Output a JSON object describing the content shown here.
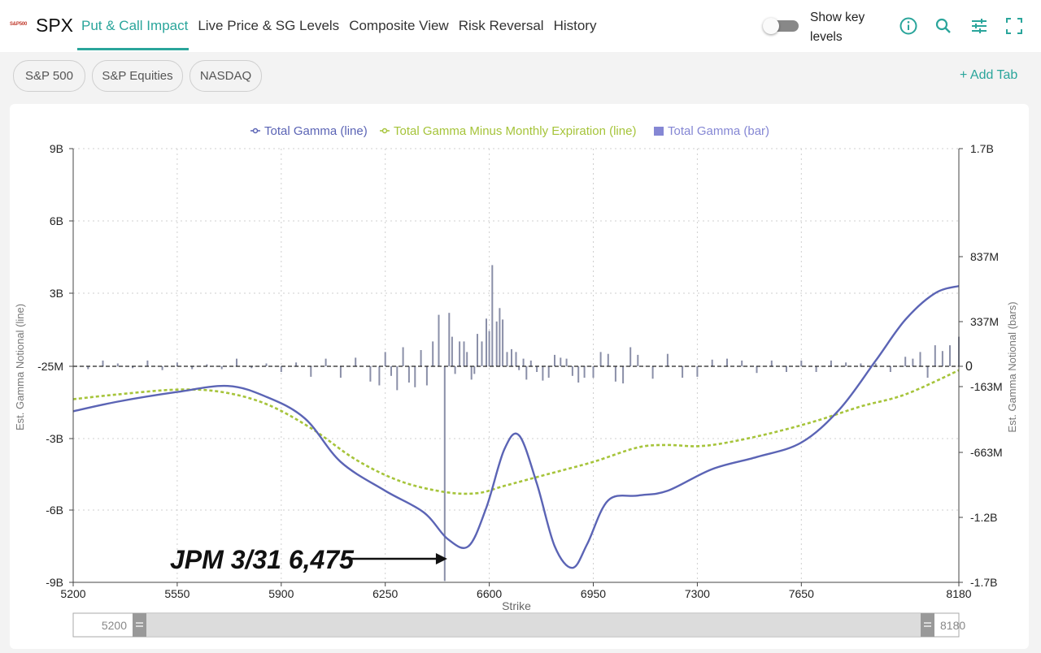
{
  "header": {
    "logo_text": "S&P500",
    "ticker": "SPX",
    "tabs": [
      {
        "label": "Put & Call Impact",
        "active": true
      },
      {
        "label": "Live Price & SG Levels",
        "active": false
      },
      {
        "label": "Composite View",
        "active": false
      },
      {
        "label": "Risk Reversal",
        "active": false
      },
      {
        "label": "History",
        "active": false
      }
    ],
    "toggle_label": "Show key levels",
    "toggle_on": false,
    "accent_color": "#2aa59b",
    "tool_icons": [
      "info-icon",
      "search-icon",
      "sliders-icon",
      "fullscreen-icon"
    ]
  },
  "subtabs": {
    "items": [
      "S&P 500",
      "S&P Equities",
      "NASDAQ"
    ],
    "add_label": "+ Add Tab"
  },
  "chart_data": {
    "type": "bar+line",
    "legend": [
      "Total Gamma (line)",
      "Total Gamma Minus Monthly Expiration (line)",
      "Total Gamma (bar)"
    ],
    "legend_placement": "top-center",
    "xlabel": "Strike",
    "ylabel_left": "Est. Gamma Notional (line)",
    "ylabel_right": "Est. Gamma Notional (bars)",
    "x_range": [
      5200,
      8180
    ],
    "x_ticks": [
      5200,
      5550,
      5900,
      6250,
      6600,
      6950,
      7300,
      7650,
      8180
    ],
    "left_axis_ticks": [
      "9B",
      "6B",
      "3B",
      "-25M",
      "-3B",
      "-6B",
      "-9B"
    ],
    "right_axis_ticks": [
      "1.7B",
      "837M",
      "337M",
      "0",
      "-163M",
      "-663M",
      "-1.2B",
      "-1.7B"
    ],
    "grid": true,
    "colors": {
      "total_gamma": "#5b64b5",
      "minus_monthly": "#a6c43a",
      "bars": "#8a8fa8"
    },
    "series": [
      {
        "name": "Total Gamma (line)",
        "unit": "B",
        "x": [
          5200,
          5350,
          5550,
          5720,
          5850,
          5980,
          6100,
          6250,
          6380,
          6460,
          6530,
          6590,
          6650,
          6700,
          6760,
          6820,
          6880,
          6930,
          7000,
          7100,
          7200,
          7350,
          7500,
          7650,
          7780,
          7900,
          8000,
          8100,
          8180
        ],
        "y": [
          -1.9,
          -1.5,
          -1.1,
          -0.85,
          -1.3,
          -2.2,
          -4.0,
          -5.2,
          -6.1,
          -7.2,
          -7.5,
          -5.9,
          -3.5,
          -2.9,
          -4.9,
          -7.5,
          -8.4,
          -7.4,
          -5.6,
          -5.4,
          -5.2,
          -4.3,
          -3.8,
          -3.2,
          -1.8,
          0.2,
          1.9,
          3.0,
          3.3
        ]
      },
      {
        "name": "Total Gamma Minus Monthly Expiration (line)",
        "unit": "B",
        "x": [
          5200,
          5350,
          5550,
          5700,
          5850,
          6000,
          6150,
          6300,
          6450,
          6560,
          6650,
          6800,
          6950,
          7100,
          7200,
          7300,
          7400,
          7550,
          7700,
          7850,
          8000,
          8180
        ],
        "y": [
          -1.4,
          -1.2,
          -1.0,
          -1.1,
          -1.6,
          -2.6,
          -3.9,
          -4.8,
          -5.25,
          -5.3,
          -5.0,
          -4.5,
          -4.0,
          -3.4,
          -3.3,
          -3.35,
          -3.2,
          -2.8,
          -2.3,
          -1.7,
          -1.2,
          -0.2
        ]
      },
      {
        "name": "Total Gamma (bar)",
        "unit": "M",
        "x": [
          5200,
          5250,
          5300,
          5350,
          5400,
          5450,
          5500,
          5550,
          5600,
          5650,
          5700,
          5750,
          5800,
          5850,
          5900,
          5950,
          6000,
          6050,
          6100,
          6150,
          6200,
          6230,
          6250,
          6270,
          6290,
          6310,
          6330,
          6350,
          6370,
          6390,
          6410,
          6430,
          6450,
          6465,
          6475,
          6485,
          6500,
          6515,
          6525,
          6540,
          6550,
          6560,
          6575,
          6590,
          6600,
          6610,
          6625,
          6635,
          6645,
          6660,
          6675,
          6690,
          6700,
          6715,
          6725,
          6740,
          6760,
          6780,
          6800,
          6820,
          6840,
          6860,
          6880,
          6900,
          6920,
          6950,
          6975,
          7000,
          7025,
          7050,
          7075,
          7100,
          7150,
          7200,
          7250,
          7300,
          7350,
          7400,
          7450,
          7500,
          7550,
          7600,
          7650,
          7700,
          7750,
          7800,
          7850,
          7900,
          7950,
          8000,
          8025,
          8050,
          8075,
          8100,
          8125,
          8150,
          8180
        ],
        "y": [
          0,
          -30,
          60,
          30,
          -20,
          60,
          -40,
          40,
          -30,
          20,
          -30,
          80,
          -20,
          30,
          -60,
          40,
          -110,
          80,
          -120,
          90,
          -160,
          -200,
          150,
          -100,
          -250,
          200,
          -170,
          -220,
          170,
          -200,
          260,
          540,
          -2250,
          560,
          310,
          -80,
          260,
          260,
          150,
          -140,
          -80,
          340,
          260,
          500,
          370,
          1060,
          470,
          610,
          490,
          150,
          180,
          150,
          -40,
          80,
          -140,
          60,
          -60,
          -150,
          -120,
          120,
          90,
          80,
          -100,
          -170,
          -120,
          -120,
          150,
          130,
          -160,
          -180,
          200,
          120,
          -130,
          130,
          -120,
          -110,
          70,
          80,
          60,
          -70,
          60,
          -60,
          60,
          -60,
          60,
          40,
          30,
          30,
          -60,
          100,
          80,
          150,
          -120,
          220,
          160,
          220,
          310
        ]
      }
    ],
    "annotation": {
      "text": "JPM 3/31 6,475",
      "target_x": 6475
    },
    "range_slider": {
      "min_label": "5200",
      "max_label": "8180"
    }
  }
}
